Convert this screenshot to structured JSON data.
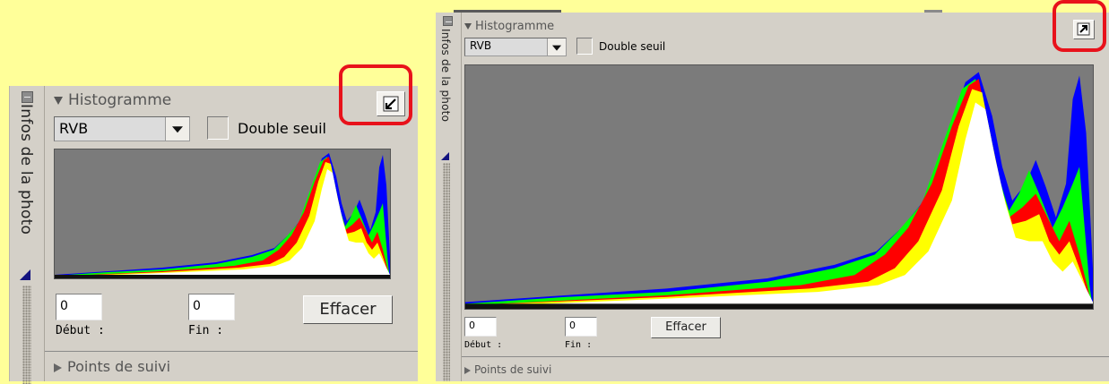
{
  "panel": {
    "title": "Histogramme",
    "vertical_tab_label": "Infos de la photo",
    "channel_select_value": "RVB",
    "double_threshold_label": "Double seuil",
    "start_value": "0",
    "end_value": "0",
    "start_label": "Début :",
    "end_label": "Fin :",
    "clear_button_label": "Effacer",
    "next_section_label": "Points de suivi"
  },
  "left_panel": {
    "state": "docked",
    "toggle_icon": "dock-arrow-icon"
  },
  "right_panel": {
    "state": "undocked",
    "toggle_icon": "undock-arrow-icon"
  },
  "colors": {
    "background": "#ffff99",
    "panel": "#d4d0c8",
    "histogram_bg": "#7b7b7b",
    "highlight_box": "#e8121b",
    "channel_red": "#ff0000",
    "channel_yellow": "#ffff00",
    "channel_green": "#00ff00",
    "channel_blue": "#0000ff",
    "channel_cyan": "#00ffff",
    "channel_magenta": "#ff00ff"
  }
}
